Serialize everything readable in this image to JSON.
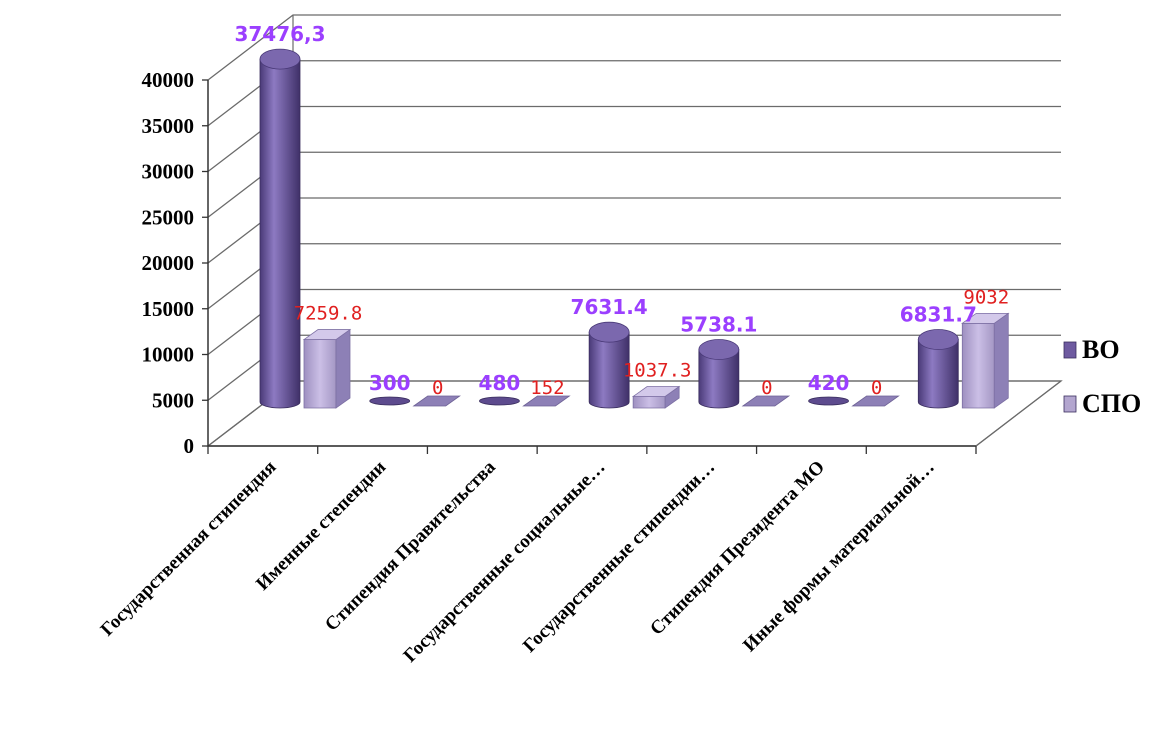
{
  "chart_data": {
    "type": "bar",
    "categories": [
      "Государственная  стипендия",
      "Именные степендии",
      "Стипендия Правительства",
      "Государственные социальные…",
      "Государственные стипендии…",
      "Стипендия Президента МО",
      "Иные формы материальной…"
    ],
    "series": [
      {
        "name": "ВО",
        "values": [
          37476.3,
          300,
          480,
          7631.4,
          5738.1,
          420,
          6831.7
        ],
        "labels": [
          "37476,3",
          "300",
          "480",
          "7631.4",
          "5738.1",
          "420",
          "6831.7"
        ],
        "color": "#6e5aa0"
      },
      {
        "name": "СПО",
        "values": [
          7259.8,
          0,
          152,
          1037.3,
          0,
          0,
          9032
        ],
        "labels": [
          "7259.8",
          "0",
          "152",
          "1037.3",
          "0",
          "0",
          "9032"
        ],
        "color": "#b3a6cf"
      }
    ],
    "yticks": [
      "0",
      "5000",
      "10000",
      "15000",
      "20000",
      "25000",
      "30000",
      "35000",
      "40000"
    ],
    "ylim": [
      0,
      40000
    ],
    "grid": true,
    "legend": "right",
    "style": "3d-cylinder"
  }
}
